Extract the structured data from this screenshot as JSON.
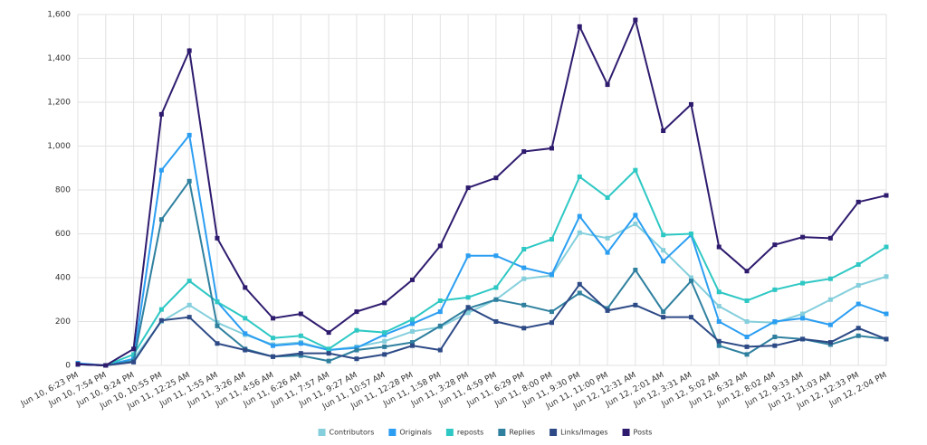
{
  "chart_data": {
    "type": "line",
    "categories": [
      "Jun 10, 6:23 PM",
      "Jun 10, 7:54 PM",
      "Jun 10, 9:24 PM",
      "Jun 10, 10:55 PM",
      "Jun 11, 12:25 AM",
      "Jun 11, 1:55 AM",
      "Jun 11, 3:26 AM",
      "Jun 11, 4:56 AM",
      "Jun 11, 6:26 AM",
      "Jun 11, 7:57 AM",
      "Jun 11, 9:27 AM",
      "Jun 11, 10:57 AM",
      "Jun 11, 12:28 PM",
      "Jun 11, 1:58 PM",
      "Jun 11, 3:28 PM",
      "Jun 11, 4:59 PM",
      "Jun 11, 6:29 PM",
      "Jun 11, 8:00 PM",
      "Jun 11, 9:30 PM",
      "Jun 11, 11:00 PM",
      "Jun 12, 12:31 AM",
      "Jun 12, 2:01 AM",
      "Jun 12, 3:31 AM",
      "Jun 12, 5:02 AM",
      "Jun 12, 6:32 AM",
      "Jun 12, 8:02 AM",
      "Jun 12, 9:33 AM",
      "Jun 12, 11:03 AM",
      "Jun 12, 12:33 PM",
      "Jun 12, 2:04 PM"
    ],
    "series": [
      {
        "name": "Contributors",
        "color": "#85cfdc",
        "values": [
          5,
          0,
          30,
          200,
          275,
          195,
          140,
          95,
          105,
          70,
          85,
          110,
          155,
          175,
          240,
          300,
          395,
          410,
          605,
          580,
          645,
          525,
          400,
          270,
          200,
          195,
          235,
          300,
          365,
          405
        ]
      },
      {
        "name": "Originals",
        "color": "#2b9ef2",
        "values": [
          10,
          0,
          30,
          890,
          1050,
          290,
          145,
          90,
          100,
          70,
          80,
          140,
          190,
          245,
          500,
          500,
          445,
          415,
          680,
          515,
          685,
          475,
          595,
          200,
          130,
          200,
          215,
          185,
          280,
          235
        ]
      },
      {
        "name": "reposts",
        "color": "#2ec8c4",
        "values": [
          5,
          0,
          50,
          255,
          385,
          290,
          215,
          125,
          135,
          75,
          160,
          150,
          210,
          295,
          310,
          355,
          530,
          575,
          860,
          765,
          890,
          595,
          600,
          335,
          295,
          345,
          375,
          395,
          460,
          540
        ]
      },
      {
        "name": "Replies",
        "color": "#2f809f",
        "values": [
          5,
          0,
          20,
          665,
          840,
          180,
          75,
          40,
          45,
          20,
          70,
          85,
          105,
          180,
          260,
          300,
          275,
          245,
          330,
          260,
          435,
          245,
          385,
          90,
          50,
          130,
          120,
          95,
          135,
          120
        ]
      },
      {
        "name": "Links/Images",
        "color": "#2d4a86",
        "values": [
          5,
          0,
          15,
          205,
          220,
          100,
          70,
          40,
          55,
          55,
          30,
          50,
          90,
          70,
          265,
          200,
          170,
          195,
          370,
          250,
          275,
          220,
          220,
          110,
          85,
          90,
          120,
          105,
          170,
          120
        ]
      },
      {
        "name": "Posts",
        "color": "#2e1b6e",
        "values": [
          5,
          0,
          75,
          1145,
          1435,
          580,
          355,
          215,
          235,
          150,
          245,
          285,
          390,
          545,
          810,
          855,
          975,
          990,
          1545,
          1280,
          1575,
          1070,
          1190,
          540,
          430,
          550,
          585,
          580,
          745,
          775
        ]
      }
    ],
    "ylim": [
      0,
      1600
    ],
    "yticks": [
      0,
      200,
      400,
      600,
      800,
      {
        "value": 1000,
        "label": "1,000"
      },
      {
        "value": 1200,
        "label": "1,200"
      },
      {
        "value": 1400,
        "label": "1,400"
      },
      {
        "value": 1600,
        "label": "1,600"
      }
    ],
    "grid": true,
    "legend": "bottom"
  }
}
